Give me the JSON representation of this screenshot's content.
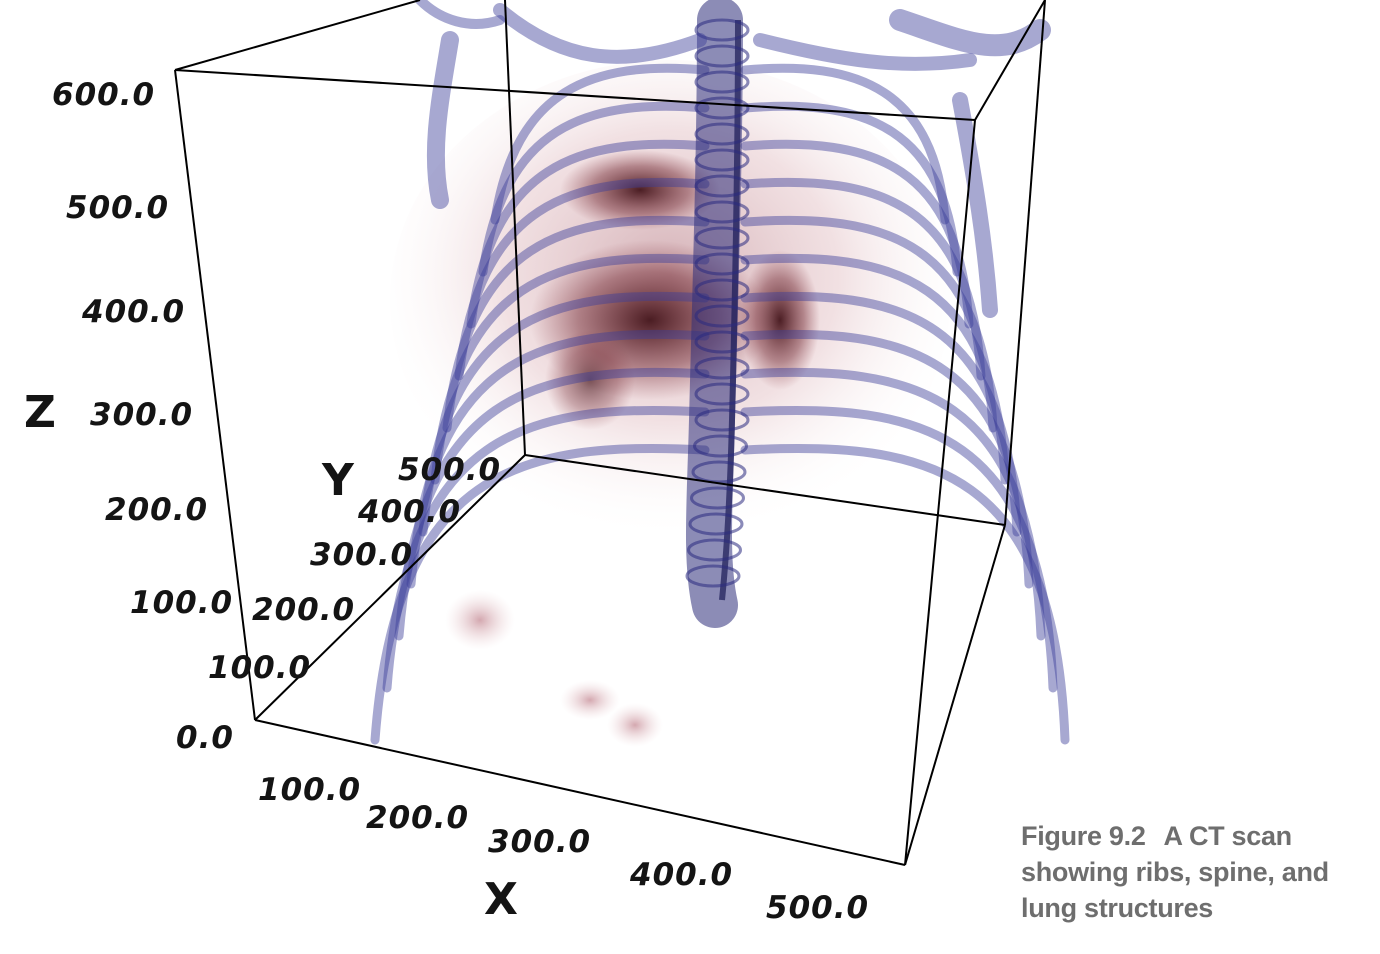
{
  "figure": {
    "label": "Figure 9.2",
    "caption": "A CT scan showing ribs, spine, and lung structures"
  },
  "plot": {
    "axes": {
      "x": {
        "label": "X",
        "ticks": [
          "100.0",
          "200.0",
          "300.0",
          "400.0",
          "500.0"
        ]
      },
      "y": {
        "label": "Y",
        "ticks": [
          "100.0",
          "200.0",
          "300.0",
          "400.0",
          "500.0"
        ]
      },
      "z": {
        "label": "Z",
        "ticks": [
          "0.0",
          "100.0",
          "200.0",
          "300.0",
          "400.0",
          "500.0",
          "600.0"
        ]
      }
    },
    "colors": {
      "bone": "#3b3f9a",
      "soft_tissue": "#7a1a22",
      "box_lines": "#000000"
    }
  }
}
